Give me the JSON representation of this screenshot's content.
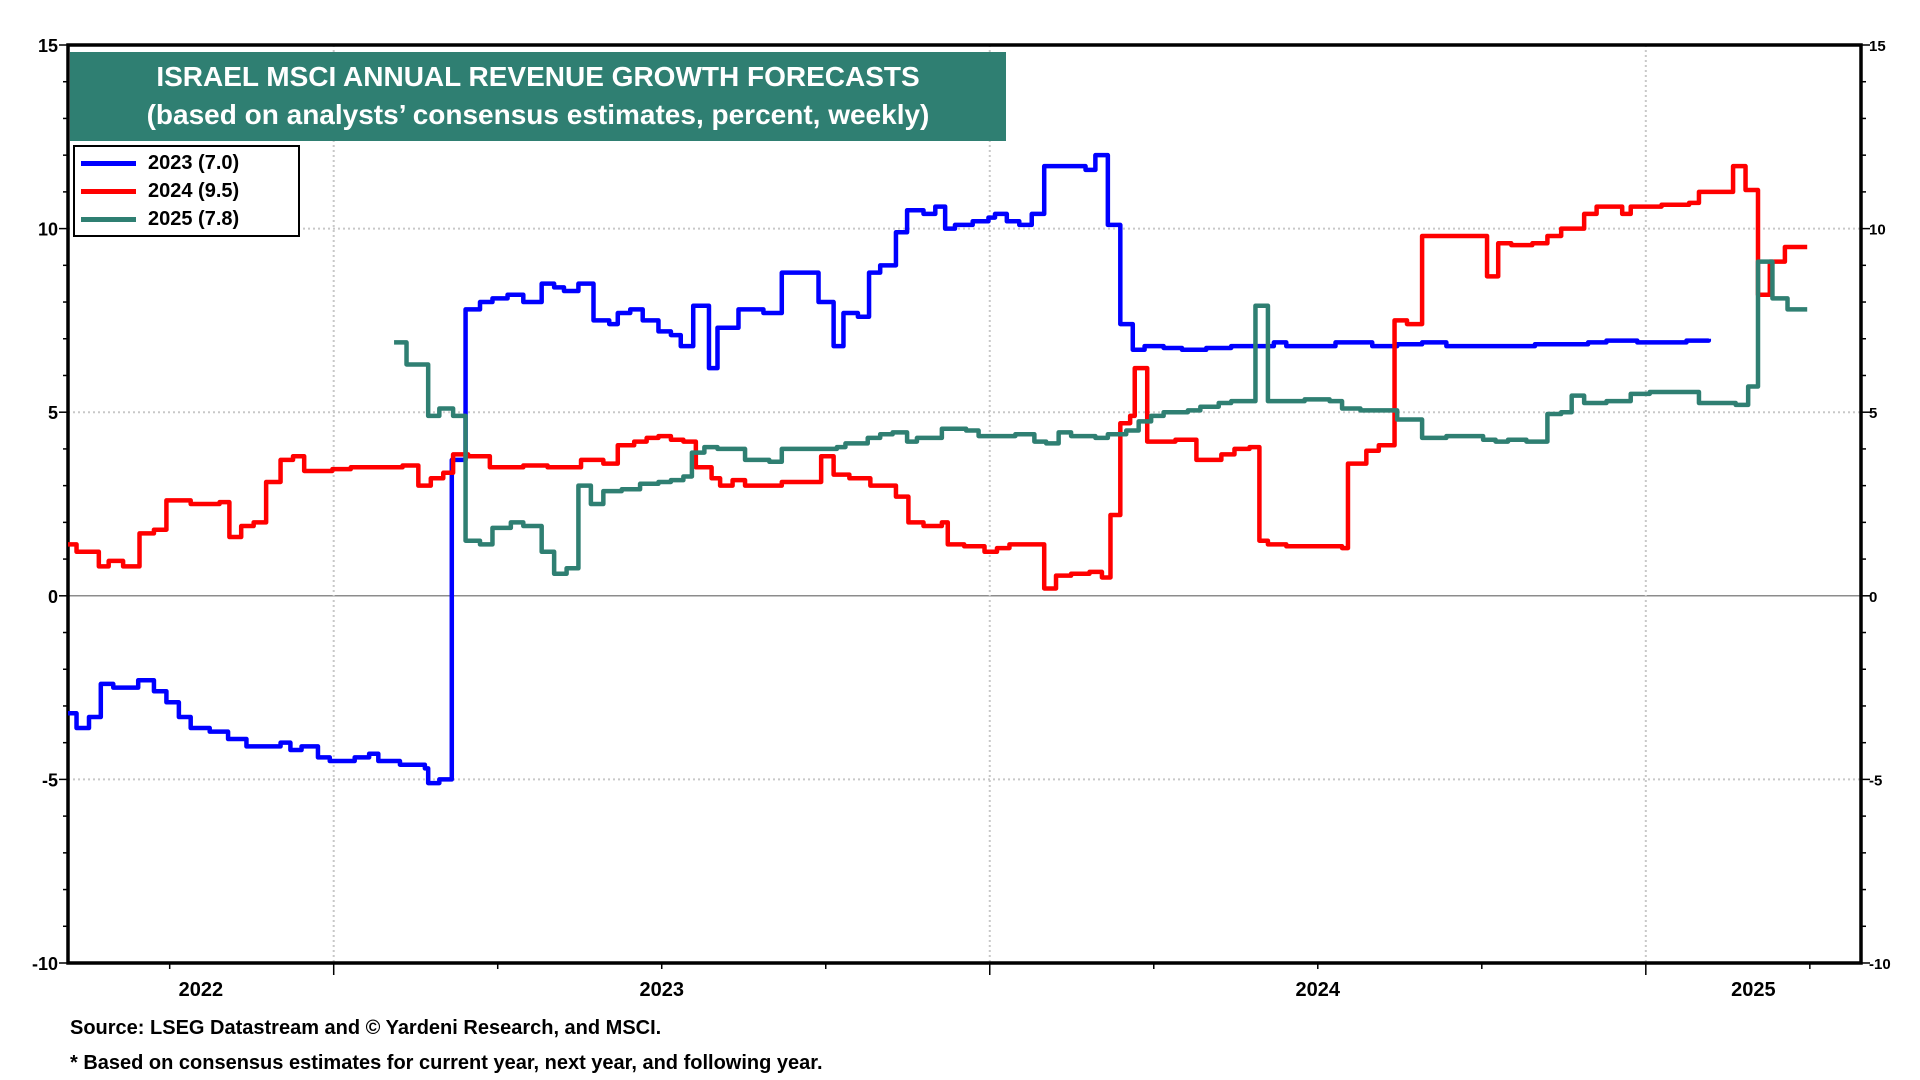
{
  "chart_data": {
    "type": "line",
    "title": "ISRAEL MSCI ANNUAL REVENUE GROWTH FORECASTS",
    "subtitle": "(based on analysts’ consensus estimates, percent, weekly)",
    "xlabel": "",
    "ylabel": "",
    "ylim": [
      -10,
      15
    ],
    "xlim": [
      2022.595,
      2025.328
    ],
    "yticks": [
      "15",
      "10",
      "5",
      "0",
      "-5",
      "-10"
    ],
    "ytick_values": [
      15,
      10,
      5,
      0,
      -5,
      -10
    ],
    "xticks": [
      "2022",
      "2023",
      "2024",
      "2025"
    ],
    "grid": true,
    "legend_position": "top-left",
    "step": true,
    "series": [
      {
        "name": "2023 (7.0)",
        "color": "#0000ff",
        "points": [
          [
            2022.595,
            -3.2
          ],
          [
            2022.608,
            -3.6
          ],
          [
            2022.627,
            -3.3
          ],
          [
            2022.645,
            -2.4
          ],
          [
            2022.664,
            -2.5
          ],
          [
            2022.702,
            -2.3
          ],
          [
            2022.726,
            -2.6
          ],
          [
            2022.745,
            -2.9
          ],
          [
            2022.764,
            -3.3
          ],
          [
            2022.782,
            -3.6
          ],
          [
            2022.811,
            -3.7
          ],
          [
            2022.839,
            -3.9
          ],
          [
            2022.867,
            -4.1
          ],
          [
            2022.919,
            -4.0
          ],
          [
            2022.934,
            -4.2
          ],
          [
            2022.951,
            -4.1
          ],
          [
            2022.976,
            -4.4
          ],
          [
            2022.994,
            -4.5
          ],
          [
            2023.032,
            -4.4
          ],
          [
            2023.054,
            -4.3
          ],
          [
            2023.068,
            -4.5
          ],
          [
            2023.101,
            -4.6
          ],
          [
            2023.139,
            -4.7
          ],
          [
            2023.144,
            -5.1
          ],
          [
            2023.161,
            -5.0
          ],
          [
            2023.18,
            3.7
          ],
          [
            2023.201,
            7.8
          ],
          [
            2023.223,
            8.0
          ],
          [
            2023.242,
            8.1
          ],
          [
            2023.265,
            8.2
          ],
          [
            2023.289,
            8.0
          ],
          [
            2023.317,
            8.5
          ],
          [
            2023.336,
            8.4
          ],
          [
            2023.351,
            8.3
          ],
          [
            2023.373,
            8.5
          ],
          [
            2023.396,
            7.5
          ],
          [
            2023.42,
            7.4
          ],
          [
            2023.433,
            7.7
          ],
          [
            2023.452,
            7.8
          ],
          [
            2023.471,
            7.5
          ],
          [
            2023.495,
            7.2
          ],
          [
            2023.514,
            7.1
          ],
          [
            2023.529,
            6.8
          ],
          [
            2023.548,
            7.9
          ],
          [
            2023.572,
            6.2
          ],
          [
            2023.585,
            7.3
          ],
          [
            2023.617,
            7.8
          ],
          [
            2023.655,
            7.7
          ],
          [
            2023.683,
            8.8
          ],
          [
            2023.739,
            8.0
          ],
          [
            2023.762,
            6.8
          ],
          [
            2023.777,
            7.7
          ],
          [
            2023.799,
            7.6
          ],
          [
            2023.816,
            8.8
          ],
          [
            2023.833,
            9.0
          ],
          [
            2023.857,
            9.9
          ],
          [
            2023.874,
            10.5
          ],
          [
            2023.899,
            10.4
          ],
          [
            2023.917,
            10.6
          ],
          [
            2023.932,
            10.0
          ],
          [
            2023.947,
            10.1
          ],
          [
            2023.974,
            10.2
          ],
          [
            2023.998,
            10.3
          ],
          [
            2024.008,
            10.4
          ],
          [
            2024.026,
            10.2
          ],
          [
            2024.045,
            10.1
          ],
          [
            2024.064,
            10.4
          ],
          [
            2024.083,
            11.7
          ],
          [
            2024.146,
            11.6
          ],
          [
            2024.161,
            12.0
          ],
          [
            2024.18,
            10.1
          ],
          [
            2024.199,
            7.4
          ],
          [
            2024.218,
            6.7
          ],
          [
            2024.236,
            6.8
          ],
          [
            2024.265,
            6.75
          ],
          [
            2024.293,
            6.7
          ],
          [
            2024.33,
            6.75
          ],
          [
            2024.368,
            6.8
          ],
          [
            2024.433,
            6.9
          ],
          [
            2024.452,
            6.8
          ],
          [
            2024.527,
            6.9
          ],
          [
            2024.583,
            6.8
          ],
          [
            2024.621,
            6.85
          ],
          [
            2024.659,
            6.9
          ],
          [
            2024.696,
            6.8
          ],
          [
            2024.812,
            6.8
          ],
          [
            2024.831,
            6.85
          ],
          [
            2024.912,
            6.9
          ],
          [
            2024.94,
            6.95
          ],
          [
            2024.987,
            6.9
          ],
          [
            2025.062,
            6.95
          ],
          [
            2025.096,
            7.0
          ]
        ]
      },
      {
        "name": "2024 (9.5)",
        "color": "#ff0000",
        "points": [
          [
            2022.595,
            1.4
          ],
          [
            2022.608,
            1.2
          ],
          [
            2022.642,
            0.8
          ],
          [
            2022.657,
            0.95
          ],
          [
            2022.679,
            0.8
          ],
          [
            2022.704,
            1.7
          ],
          [
            2022.726,
            1.8
          ],
          [
            2022.745,
            2.6
          ],
          [
            2022.782,
            2.5
          ],
          [
            2022.826,
            2.55
          ],
          [
            2022.841,
            1.6
          ],
          [
            2022.859,
            1.9
          ],
          [
            2022.878,
            2.0
          ],
          [
            2022.897,
            3.1
          ],
          [
            2022.919,
            3.7
          ],
          [
            2022.938,
            3.8
          ],
          [
            2022.955,
            3.4
          ],
          [
            2022.998,
            3.45
          ],
          [
            2023.026,
            3.5
          ],
          [
            2023.105,
            3.55
          ],
          [
            2023.129,
            3.0
          ],
          [
            2023.148,
            3.2
          ],
          [
            2023.167,
            3.35
          ],
          [
            2023.182,
            3.85
          ],
          [
            2023.205,
            3.8
          ],
          [
            2023.238,
            3.5
          ],
          [
            2023.289,
            3.55
          ],
          [
            2023.326,
            3.5
          ],
          [
            2023.377,
            3.7
          ],
          [
            2023.411,
            3.6
          ],
          [
            2023.433,
            4.1
          ],
          [
            2023.458,
            4.2
          ],
          [
            2023.477,
            4.3
          ],
          [
            2023.495,
            4.35
          ],
          [
            2023.514,
            4.25
          ],
          [
            2023.533,
            4.2
          ],
          [
            2023.552,
            3.5
          ],
          [
            2023.576,
            3.2
          ],
          [
            2023.589,
            3.0
          ],
          [
            2023.608,
            3.15
          ],
          [
            2023.627,
            3.0
          ],
          [
            2023.683,
            3.1
          ],
          [
            2023.743,
            3.8
          ],
          [
            2023.762,
            3.3
          ],
          [
            2023.786,
            3.2
          ],
          [
            2023.818,
            3.0
          ],
          [
            2023.857,
            2.7
          ],
          [
            2023.876,
            2.0
          ],
          [
            2023.899,
            1.9
          ],
          [
            2023.927,
            2.0
          ],
          [
            2023.936,
            1.4
          ],
          [
            2023.961,
            1.35
          ],
          [
            2023.992,
            1.2
          ],
          [
            2024.011,
            1.3
          ],
          [
            2024.03,
            1.4
          ],
          [
            2024.083,
            0.2
          ],
          [
            2024.101,
            0.55
          ],
          [
            2024.124,
            0.6
          ],
          [
            2024.152,
            0.65
          ],
          [
            2024.171,
            0.5
          ],
          [
            2024.184,
            2.2
          ],
          [
            2024.199,
            4.7
          ],
          [
            2024.214,
            4.9
          ],
          [
            2024.221,
            6.2
          ],
          [
            2024.24,
            4.2
          ],
          [
            2024.283,
            4.25
          ],
          [
            2024.315,
            3.7
          ],
          [
            2024.353,
            3.85
          ],
          [
            2024.373,
            4.0
          ],
          [
            2024.396,
            4.05
          ],
          [
            2024.411,
            1.5
          ],
          [
            2024.424,
            1.4
          ],
          [
            2024.452,
            1.35
          ],
          [
            2024.537,
            1.3
          ],
          [
            2024.546,
            3.6
          ],
          [
            2024.574,
            3.95
          ],
          [
            2024.593,
            4.1
          ],
          [
            2024.617,
            7.5
          ],
          [
            2024.636,
            7.4
          ],
          [
            2024.659,
            9.8
          ],
          [
            2024.758,
            8.7
          ],
          [
            2024.775,
            9.6
          ],
          [
            2024.795,
            9.55
          ],
          [
            2024.827,
            9.6
          ],
          [
            2024.85,
            9.8
          ],
          [
            2024.871,
            10.0
          ],
          [
            2024.906,
            10.4
          ],
          [
            2024.925,
            10.6
          ],
          [
            2024.964,
            10.4
          ],
          [
            2024.977,
            10.6
          ],
          [
            2025.024,
            10.65
          ],
          [
            2025.066,
            10.7
          ],
          [
            2025.081,
            11.0
          ],
          [
            2025.133,
            11.7
          ],
          [
            2025.152,
            11.05
          ],
          [
            2025.171,
            8.2
          ],
          [
            2025.189,
            9.1
          ],
          [
            2025.212,
            9.5
          ],
          [
            2025.246,
            9.5
          ]
        ]
      },
      {
        "name": "2025 (7.8)",
        "color": "#2f7f72",
        "points": [
          [
            2023.092,
            6.9
          ],
          [
            2023.111,
            6.3
          ],
          [
            2023.144,
            4.9
          ],
          [
            2023.161,
            5.1
          ],
          [
            2023.182,
            4.9
          ],
          [
            2023.201,
            1.5
          ],
          [
            2023.223,
            1.4
          ],
          [
            2023.242,
            1.85
          ],
          [
            2023.27,
            2.0
          ],
          [
            2023.289,
            1.9
          ],
          [
            2023.317,
            1.2
          ],
          [
            2023.336,
            0.6
          ],
          [
            2023.355,
            0.75
          ],
          [
            2023.373,
            3.0
          ],
          [
            2023.392,
            2.5
          ],
          [
            2023.411,
            2.85
          ],
          [
            2023.439,
            2.9
          ],
          [
            2023.467,
            3.05
          ],
          [
            2023.495,
            3.1
          ],
          [
            2023.514,
            3.15
          ],
          [
            2023.533,
            3.25
          ],
          [
            2023.546,
            3.9
          ],
          [
            2023.565,
            4.05
          ],
          [
            2023.585,
            4.0
          ],
          [
            2023.627,
            3.7
          ],
          [
            2023.664,
            3.65
          ],
          [
            2023.683,
            4.0
          ],
          [
            2023.767,
            4.05
          ],
          [
            2023.78,
            4.15
          ],
          [
            2023.814,
            4.3
          ],
          [
            2023.833,
            4.4
          ],
          [
            2023.852,
            4.45
          ],
          [
            2023.874,
            4.2
          ],
          [
            2023.889,
            4.3
          ],
          [
            2023.927,
            4.55
          ],
          [
            2023.964,
            4.5
          ],
          [
            2023.983,
            4.35
          ],
          [
            2024.039,
            4.4
          ],
          [
            2024.068,
            4.2
          ],
          [
            2024.086,
            4.15
          ],
          [
            2024.105,
            4.45
          ],
          [
            2024.124,
            4.35
          ],
          [
            2024.161,
            4.3
          ],
          [
            2024.18,
            4.4
          ],
          [
            2024.208,
            4.5
          ],
          [
            2024.227,
            4.75
          ],
          [
            2024.246,
            4.9
          ],
          [
            2024.265,
            5.0
          ],
          [
            2024.302,
            5.05
          ],
          [
            2024.321,
            5.15
          ],
          [
            2024.349,
            5.25
          ],
          [
            2024.368,
            5.3
          ],
          [
            2024.405,
            7.9
          ],
          [
            2024.424,
            5.3
          ],
          [
            2024.48,
            5.35
          ],
          [
            2024.518,
            5.3
          ],
          [
            2024.537,
            5.1
          ],
          [
            2024.565,
            5.05
          ],
          [
            2024.621,
            4.8
          ],
          [
            2024.659,
            4.3
          ],
          [
            2024.696,
            4.35
          ],
          [
            2024.752,
            4.25
          ],
          [
            2024.771,
            4.2
          ],
          [
            2024.79,
            4.25
          ],
          [
            2024.818,
            4.2
          ],
          [
            2024.85,
            4.95
          ],
          [
            2024.871,
            5.0
          ],
          [
            2024.887,
            5.45
          ],
          [
            2024.906,
            5.25
          ],
          [
            2024.94,
            5.3
          ],
          [
            2024.977,
            5.5
          ],
          [
            2025.006,
            5.55
          ],
          [
            2025.081,
            5.25
          ],
          [
            2025.137,
            5.2
          ],
          [
            2025.156,
            5.7
          ],
          [
            2025.171,
            9.1
          ],
          [
            2025.193,
            8.1
          ],
          [
            2025.216,
            7.8
          ],
          [
            2025.246,
            7.8
          ]
        ]
      }
    ]
  },
  "footer": {
    "source": "Source: LSEG Datastream and © Yardeni Research, and MSCI.",
    "note": "* Based on consensus estimates for current year, next year, and following year."
  }
}
